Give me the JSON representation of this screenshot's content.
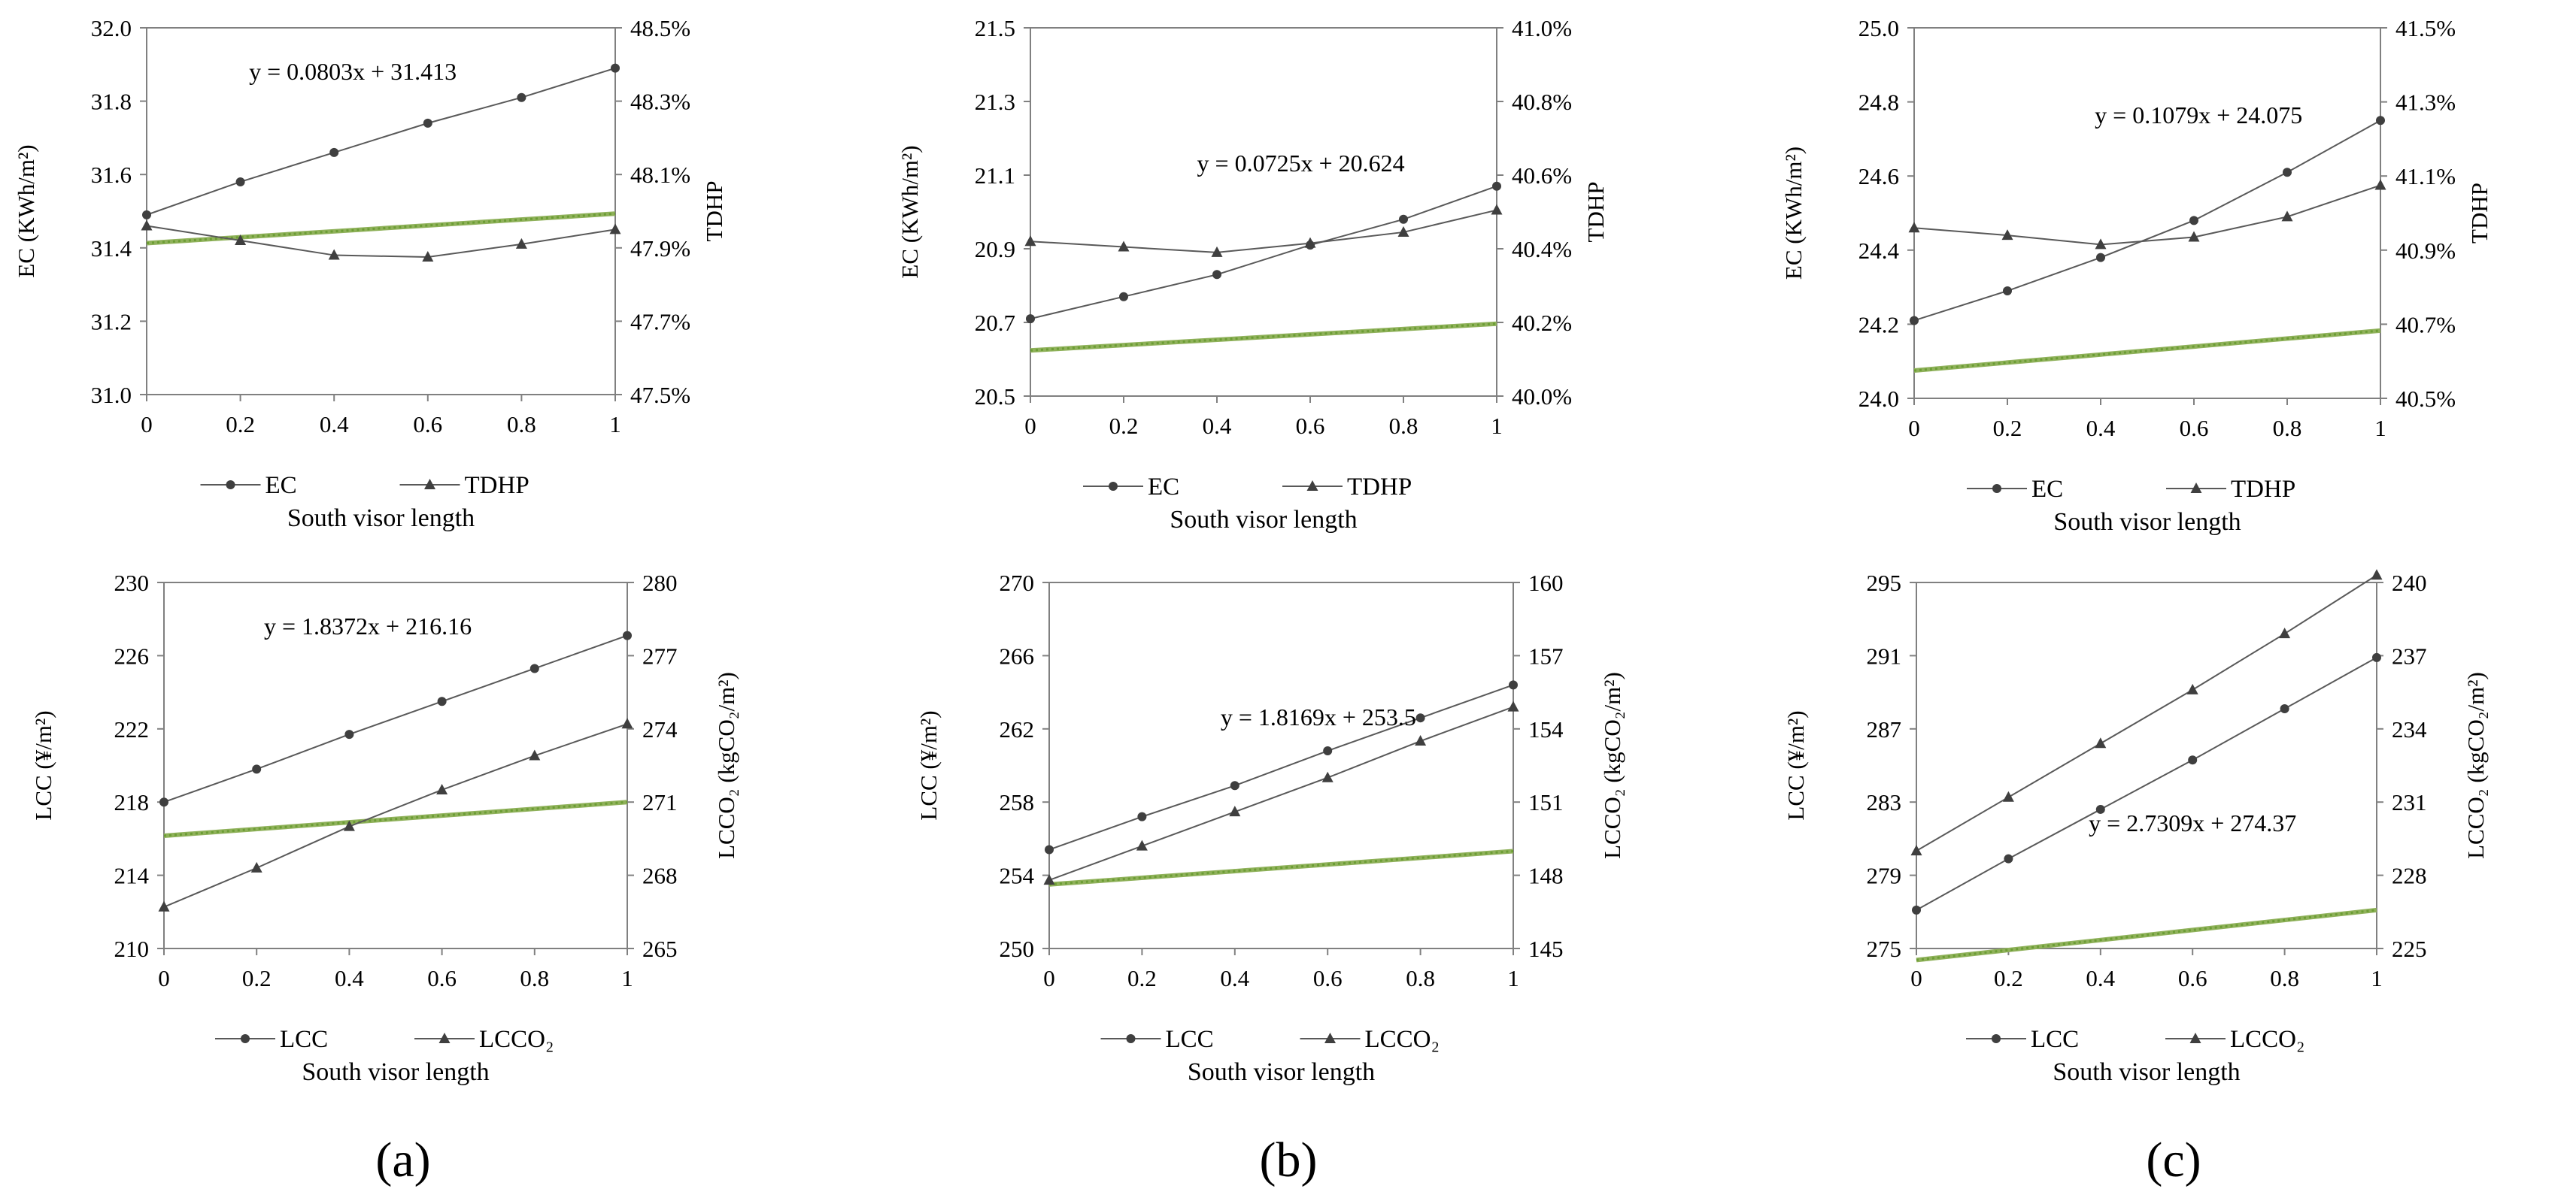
{
  "colors": {
    "series": "#595959",
    "axis": "#808080",
    "trend": "#8fb15a",
    "trendDot": "#6b9d34",
    "marker": "#3f3f3f"
  },
  "panel_labels": [
    "(a)",
    "(b)",
    "(c)"
  ],
  "chart_data": [
    {
      "type": "line",
      "id": "a-top",
      "x": [
        0,
        0.2,
        0.4,
        0.6,
        0.8,
        1
      ],
      "xticks": [
        "0",
        "0.2",
        "0.4",
        "0.6",
        "0.8",
        "1"
      ],
      "xlabel": "South visor length",
      "ylabel": "EC (KWh/m²)",
      "y2label": "TDHP",
      "ylim": [
        31.0,
        32.0
      ],
      "yticks": [
        "31.0",
        "31.2",
        "31.4",
        "31.6",
        "31.8",
        "32.0"
      ],
      "y2lim": [
        47.5,
        48.5
      ],
      "y2ticks": [
        "47.5%",
        "47.7%",
        "47.9%",
        "48.1%",
        "48.3%",
        "48.5%"
      ],
      "series": [
        {
          "name": "EC",
          "axis": "left",
          "marker": "circle",
          "values": [
            31.49,
            31.58,
            31.66,
            31.74,
            31.81,
            31.89
          ]
        },
        {
          "name": "TDHP",
          "axis": "right",
          "marker": "triangle",
          "values": [
            47.96,
            47.92,
            47.88,
            47.875,
            47.91,
            47.95
          ]
        }
      ],
      "trendline": {
        "series": "EC",
        "slope": 0.0803,
        "intercept": 31.413,
        "x0": 1,
        "label": "y = 0.0803x + 31.413",
        "labelPos": "top-center"
      }
    },
    {
      "type": "line",
      "id": "b-top",
      "x": [
        0,
        0.2,
        0.4,
        0.6,
        0.8,
        1
      ],
      "xticks": [
        "0",
        "0.2",
        "0.4",
        "0.6",
        "0.8",
        "1"
      ],
      "xlabel": "South visor length",
      "ylabel": "EC (KWh/m²)",
      "y2label": "TDHP",
      "ylim": [
        20.5,
        21.5
      ],
      "yticks": [
        "20.5",
        "20.7",
        "20.9",
        "21.1",
        "21.3",
        "21.5"
      ],
      "y2lim": [
        40.0,
        41.0
      ],
      "y2ticks": [
        "40.0%",
        "40.2%",
        "40.4%",
        "40.6%",
        "40.8%",
        "41.0%"
      ],
      "series": [
        {
          "name": "EC",
          "axis": "left",
          "marker": "circle",
          "values": [
            20.71,
            20.77,
            20.83,
            20.91,
            20.98,
            21.07
          ]
        },
        {
          "name": "TDHP",
          "axis": "right",
          "marker": "triangle",
          "values": [
            40.42,
            40.405,
            40.39,
            40.415,
            40.445,
            40.505
          ]
        }
      ],
      "trendline": {
        "series": "EC",
        "slope": 0.0725,
        "intercept": 20.624,
        "x0": 1,
        "label": "y = 0.0725x + 20.624",
        "labelPos": "middle-right"
      }
    },
    {
      "type": "line",
      "id": "c-top",
      "x": [
        0,
        0.2,
        0.4,
        0.6,
        0.8,
        1
      ],
      "xticks": [
        "0",
        "0.2",
        "0.4",
        "0.6",
        "0.8",
        "1"
      ],
      "xlabel": "South visor length",
      "ylabel": "EC (KWh/m²)",
      "y2label": "TDHP",
      "ylim": [
        24.0,
        25.0
      ],
      "yticks": [
        "24.0",
        "24.2",
        "24.4",
        "24.6",
        "24.8",
        "25.0"
      ],
      "y2lim": [
        40.5,
        41.5
      ],
      "y2ticks": [
        "40.5%",
        "40.7%",
        "40.9%",
        "41.1%",
        "41.3%",
        "41.5%"
      ],
      "series": [
        {
          "name": "EC",
          "axis": "left",
          "marker": "circle",
          "values": [
            24.21,
            24.29,
            24.38,
            24.48,
            24.61,
            24.75
          ]
        },
        {
          "name": "TDHP",
          "axis": "right",
          "marker": "triangle",
          "values": [
            40.96,
            40.94,
            40.915,
            40.935,
            40.99,
            41.075
          ]
        }
      ],
      "trendline": {
        "series": "EC",
        "slope": 0.1079,
        "intercept": 24.075,
        "x0": 1,
        "label": "y = 0.1079x + 24.075",
        "labelPos": "top-right"
      }
    },
    {
      "type": "line",
      "id": "a-bottom",
      "x": [
        0,
        0.2,
        0.4,
        0.6,
        0.8,
        1
      ],
      "xticks": [
        "0",
        "0.2",
        "0.4",
        "0.6",
        "0.8",
        "1"
      ],
      "xlabel": "South visor length",
      "ylabel": "LCC (¥/m²)",
      "y2label": "LCCO₂ (kgCO₂/m²)",
      "ylim": [
        210,
        230
      ],
      "yticks": [
        "210",
        "214",
        "218",
        "222",
        "226",
        "230"
      ],
      "y2lim": [
        265,
        280
      ],
      "y2ticks": [
        "265",
        "268",
        "271",
        "274",
        "277",
        "280"
      ],
      "series": [
        {
          "name": "LCC",
          "axis": "left",
          "marker": "circle",
          "values": [
            218.0,
            219.8,
            221.7,
            223.5,
            225.3,
            227.1
          ]
        },
        {
          "name": "LCCO₂",
          "axis": "right",
          "marker": "triangle",
          "values": [
            266.7,
            268.3,
            270.0,
            271.5,
            272.9,
            274.2
          ]
        }
      ],
      "trendline": {
        "series": "LCC",
        "slope": 1.8372,
        "intercept": 216.16,
        "x0": 1,
        "label": "y = 1.8372x + 216.16",
        "labelPos": "top-center"
      }
    },
    {
      "type": "line",
      "id": "b-bottom",
      "x": [
        0,
        0.2,
        0.4,
        0.6,
        0.8,
        1
      ],
      "xticks": [
        "0",
        "0.2",
        "0.4",
        "0.6",
        "0.8",
        "1"
      ],
      "xlabel": "South visor length",
      "ylabel": "LCC (¥/m²)",
      "y2label": "LCCO₂ (kgCO₂/m²)",
      "ylim": [
        250,
        270
      ],
      "yticks": [
        "250",
        "254",
        "258",
        "262",
        "266",
        "270"
      ],
      "y2lim": [
        145,
        160
      ],
      "y2ticks": [
        "145",
        "148",
        "151",
        "154",
        "157",
        "160"
      ],
      "series": [
        {
          "name": "LCC",
          "axis": "left",
          "marker": "circle",
          "values": [
            255.4,
            257.2,
            258.9,
            260.8,
            262.6,
            264.4
          ]
        },
        {
          "name": "LCCO₂",
          "axis": "right",
          "marker": "triangle",
          "values": [
            147.8,
            149.2,
            150.6,
            152.0,
            153.5,
            154.9
          ]
        }
      ],
      "trendline": {
        "series": "LCC",
        "slope": 1.8169,
        "intercept": 253.5,
        "x0": 1,
        "label": "y = 1.8169x + 253.5",
        "labelPos": "middle-right"
      }
    },
    {
      "type": "line",
      "id": "c-bottom",
      "x": [
        0,
        0.2,
        0.4,
        0.6,
        0.8,
        1
      ],
      "xticks": [
        "0",
        "0.2",
        "0.4",
        "0.6",
        "0.8",
        "1"
      ],
      "xlabel": "South visor length",
      "ylabel": "LCC (¥/m²)",
      "y2label": "LCCO₂ (kgCO₂/m²)",
      "ylim": [
        275,
        295
      ],
      "yticks": [
        "275",
        "279",
        "283",
        "287",
        "291",
        "295"
      ],
      "y2lim": [
        225,
        240
      ],
      "y2ticks": [
        "225",
        "228",
        "231",
        "234",
        "237",
        "240"
      ],
      "series": [
        {
          "name": "LCC",
          "axis": "left",
          "marker": "circle",
          "values": [
            277.1,
            279.9,
            282.6,
            285.3,
            288.1,
            290.9
          ]
        },
        {
          "name": "LCCO₂",
          "axis": "right",
          "marker": "triangle",
          "values": [
            229.0,
            231.2,
            233.4,
            235.6,
            237.9,
            240.3
          ]
        }
      ],
      "trendline": {
        "series": "LCC",
        "slope": 2.7309,
        "intercept": 274.37,
        "x0": 1,
        "label": "y = 2.7309x + 274.37",
        "labelPos": "lower-right"
      }
    }
  ]
}
